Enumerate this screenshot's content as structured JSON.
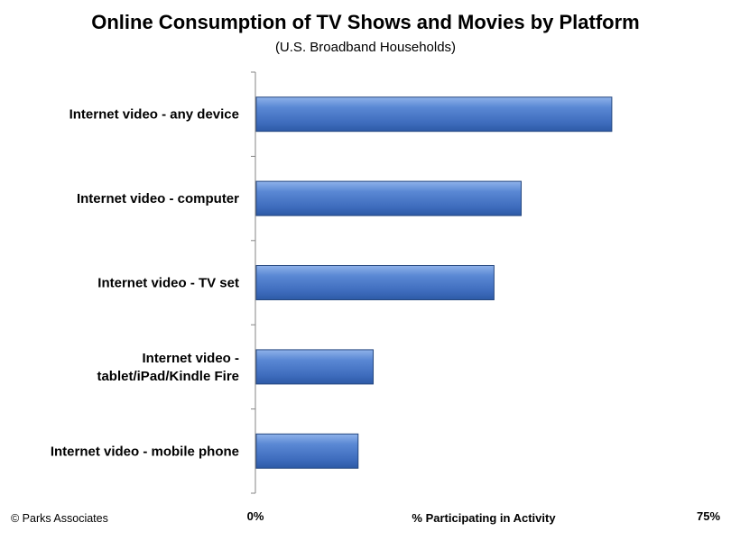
{
  "chart_data": {
    "type": "bar",
    "orientation": "horizontal",
    "title": "Online Consumption of TV Shows and Movies by Platform",
    "subtitle": "(U.S. Broadband Households)",
    "categories": [
      [
        "Internet video - any device"
      ],
      [
        "Internet video - computer"
      ],
      [
        "Internet video - TV set"
      ],
      [
        "Internet video -",
        "tablet/iPad/Kindle Fire"
      ],
      [
        "Internet video - mobile phone"
      ]
    ],
    "values": [
      59,
      44,
      39.5,
      19.5,
      17
    ],
    "xlabel": "% Participating in Activity",
    "ylabel": "",
    "xlim": [
      0,
      75
    ],
    "tick_labels": [
      "0%",
      "75%"
    ],
    "bar_color": "#3f6fc0",
    "grid": false,
    "legend": "none"
  },
  "credit": "© Parks Associates"
}
